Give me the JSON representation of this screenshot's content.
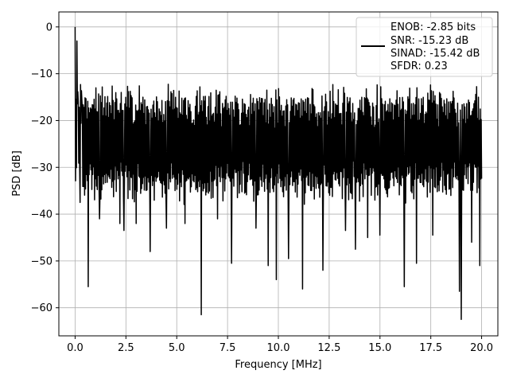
{
  "chart_data": {
    "type": "line",
    "title": "",
    "xlabel": "Frequency [MHz]",
    "ylabel": "PSD [dB]",
    "xlim": [
      -0.8,
      20.8
    ],
    "ylim": [
      -66,
      3.2
    ],
    "xticks": [
      0.0,
      2.5,
      5.0,
      7.5,
      10.0,
      12.5,
      15.0,
      17.5,
      20.0
    ],
    "xtick_labels": [
      "0.0",
      "2.5",
      "5.0",
      "7.5",
      "10.0",
      "12.5",
      "15.0",
      "17.5",
      "20.0"
    ],
    "yticks": [
      0,
      -10,
      -20,
      -30,
      -40,
      -50,
      -60
    ],
    "ytick_labels": [
      "0",
      "−10",
      "−20",
      "−30",
      "−40",
      "−50",
      "−60"
    ],
    "grid": true,
    "legend_position": "top-right",
    "legend_lines": [
      "ENOB: -2.85 bits",
      "SNR: -15.23 dB",
      "SINAD: -15.42 dB",
      "SFDR: 0.23"
    ],
    "series": [
      {
        "name": "ENOB: -2.85 bits\nSNR: -15.23 dB\nSINAD: -15.42 dB\nSFDR: 0.23",
        "color": "#000000",
        "description": "Noisy power spectral density trace; values oscillate roughly between -35 dB and -15 dB across 0–20 MHz, with a 0 dB peak at DC and deep spikes below.",
        "x_range": [
          0,
          20
        ],
        "band_upper_approx": -15,
        "band_lower_approx": -35,
        "peaks": [
          {
            "x": 0.0,
            "y": 0.0
          },
          {
            "x": 0.05,
            "y": -15.5
          },
          {
            "x": 0.1,
            "y": -3.0
          },
          {
            "x": 0.15,
            "y": -16.0
          }
        ],
        "dips": [
          {
            "x": 0.25,
            "y": -37.5
          },
          {
            "x": 0.65,
            "y": -55.5
          },
          {
            "x": 1.2,
            "y": -41.0
          },
          {
            "x": 2.2,
            "y": -42.0
          },
          {
            "x": 2.4,
            "y": -43.5
          },
          {
            "x": 3.0,
            "y": -42.0
          },
          {
            "x": 3.7,
            "y": -48.0
          },
          {
            "x": 4.5,
            "y": -43.0
          },
          {
            "x": 5.4,
            "y": -42.0
          },
          {
            "x": 6.2,
            "y": -61.5
          },
          {
            "x": 7.0,
            "y": -41.0
          },
          {
            "x": 7.7,
            "y": -50.5
          },
          {
            "x": 8.9,
            "y": -43.0
          },
          {
            "x": 9.5,
            "y": -51.0
          },
          {
            "x": 9.9,
            "y": -54.0
          },
          {
            "x": 10.5,
            "y": -49.5
          },
          {
            "x": 11.2,
            "y": -56.0
          },
          {
            "x": 12.2,
            "y": -52.0
          },
          {
            "x": 13.3,
            "y": -43.5
          },
          {
            "x": 13.8,
            "y": -47.5
          },
          {
            "x": 14.4,
            "y": -45.0
          },
          {
            "x": 15.0,
            "y": -44.5
          },
          {
            "x": 16.2,
            "y": -55.5
          },
          {
            "x": 16.8,
            "y": -50.5
          },
          {
            "x": 17.6,
            "y": -44.5
          },
          {
            "x": 18.9,
            "y": -56.5
          },
          {
            "x": 19.0,
            "y": -62.5
          },
          {
            "x": 19.5,
            "y": -46.0
          },
          {
            "x": 19.9,
            "y": -51.0
          }
        ]
      }
    ]
  }
}
